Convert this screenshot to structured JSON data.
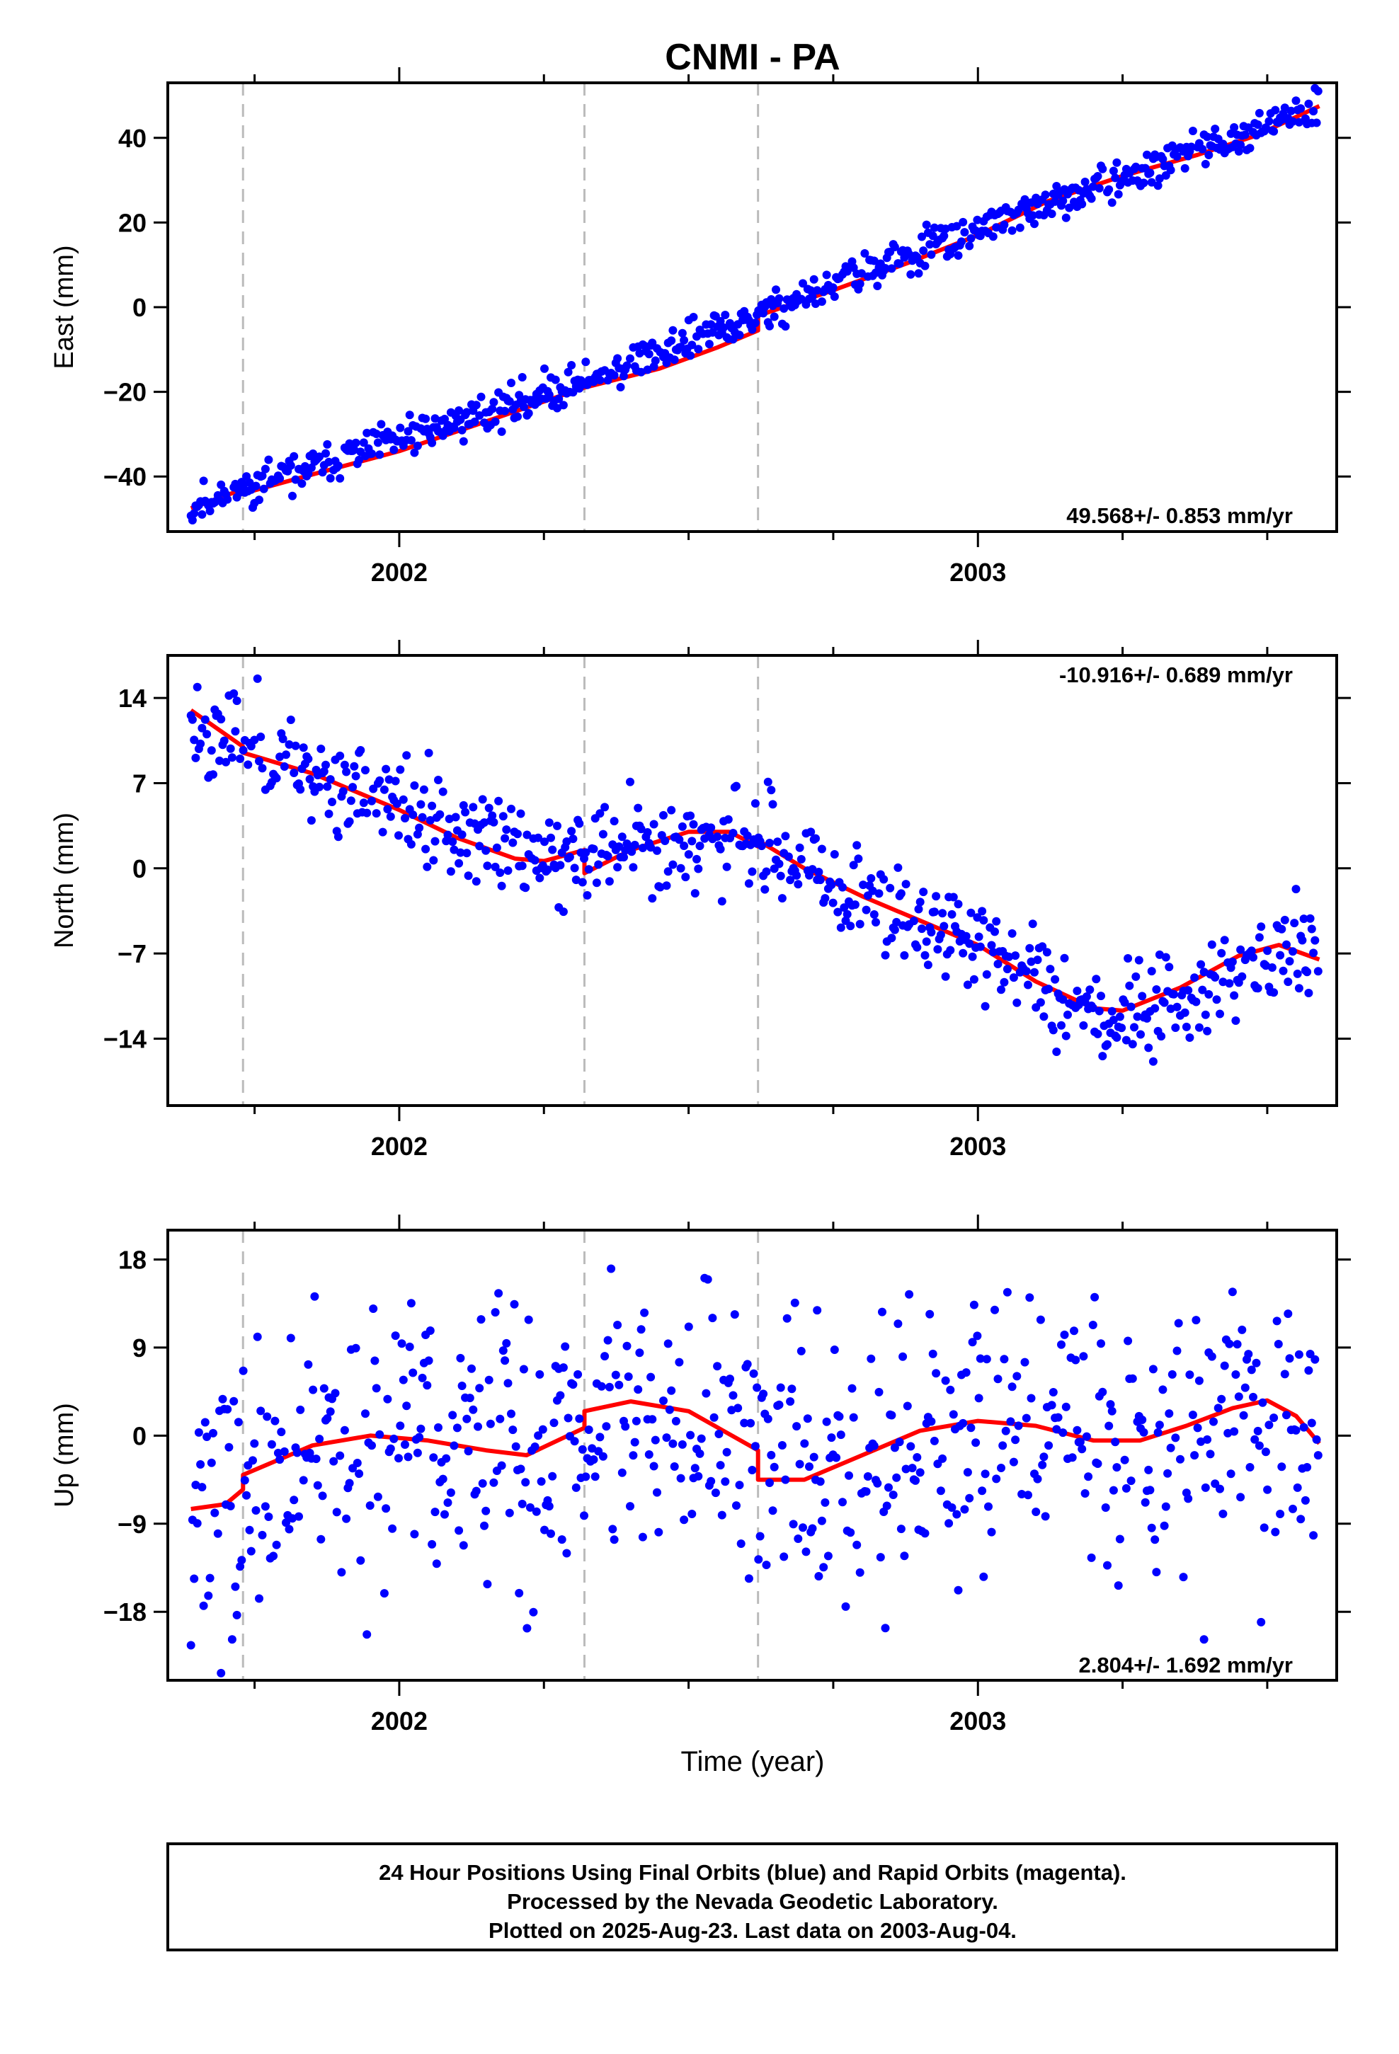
{
  "title": "CNMI - PA",
  "x_axis_label": "Time (year)",
  "footer": {
    "line1": "24 Hour Positions Using Final Orbits (blue) and Rapid Orbits (magenta).",
    "line2": "Processed by the Nevada Geodetic Laboratory.",
    "line3": "Plotted on 2025-Aug-23. Last data on 2003-Aug-04."
  },
  "colors": {
    "final_orbits": "#0000ff",
    "model_fit": "#ff0000",
    "event_lines": "#bbbbbb"
  },
  "chart_data": [
    {
      "type": "scatter",
      "ylabel": "East (mm)",
      "rate_label": "49.568+/- 0.853 mm/yr",
      "rate_position": "bottom-right",
      "xlim": [
        2001.6,
        2003.62
      ],
      "ylim": [
        -53,
        53
      ],
      "xticks": [
        2002,
        2003
      ],
      "xtick_labels": [
        "2002",
        "2003"
      ],
      "xminor": [
        2001.75,
        2002.25,
        2002.5,
        2002.75,
        2003.25,
        2003.5
      ],
      "yticks": [
        -40,
        -20,
        0,
        20,
        40
      ],
      "ytick_labels": [
        "−40",
        "−20",
        "0",
        "20",
        "40"
      ],
      "event_lines": [
        2001.73,
        2002.32,
        2002.62
      ],
      "fit": [
        [
          2001.64,
          -47.5
        ],
        [
          2001.73,
          -43.0
        ],
        [
          2001.73,
          -44.0
        ],
        [
          2001.85,
          -39.5
        ],
        [
          2002.0,
          -34.0
        ],
        [
          2002.15,
          -27.0
        ],
        [
          2002.32,
          -19.0
        ],
        [
          2002.45,
          -14.5
        ],
        [
          2002.55,
          -9.5
        ],
        [
          2002.62,
          -5.5
        ],
        [
          2002.62,
          -2.0
        ],
        [
          2002.75,
          4.0
        ],
        [
          2002.88,
          10.5
        ],
        [
          2003.0,
          17.0
        ],
        [
          2003.12,
          25.0
        ],
        [
          2003.25,
          31.0
        ],
        [
          2003.38,
          36.0
        ],
        [
          2003.48,
          40.5
        ],
        [
          2003.59,
          47.5
        ]
      ],
      "trend": [
        [
          2001.64,
          -47.0
        ],
        [
          2002.32,
          -17.5
        ],
        [
          2002.62,
          -2.0
        ],
        [
          2003.0,
          18.5
        ],
        [
          2003.3,
          32.5
        ],
        [
          2003.59,
          47.5
        ]
      ],
      "noise": 2.3,
      "seed": 11
    },
    {
      "type": "scatter",
      "ylabel": "North (mm)",
      "rate_label": "-10.916+/- 0.689 mm/yr",
      "rate_position": "top-right",
      "xlim": [
        2001.6,
        2003.62
      ],
      "ylim": [
        -19.5,
        17.5
      ],
      "xticks": [
        2002,
        2003
      ],
      "xtick_labels": [
        "2002",
        "2003"
      ],
      "xminor": [
        2001.75,
        2002.25,
        2002.5,
        2002.75,
        2003.25,
        2003.5
      ],
      "yticks": [
        -14,
        -7,
        0,
        7,
        14
      ],
      "ytick_labels": [
        "−14",
        "−7",
        "0",
        "7",
        "14"
      ],
      "event_lines": [
        2001.73,
        2002.32,
        2002.62
      ],
      "fit": [
        [
          2001.64,
          13.0
        ],
        [
          2001.73,
          10.0
        ],
        [
          2001.73,
          9.5
        ],
        [
          2001.85,
          7.8
        ],
        [
          2002.0,
          4.8
        ],
        [
          2002.1,
          2.5
        ],
        [
          2002.2,
          0.8
        ],
        [
          2002.25,
          0.6
        ],
        [
          2002.32,
          1.5
        ],
        [
          2002.32,
          -0.4
        ],
        [
          2002.4,
          1.5
        ],
        [
          2002.5,
          3.0
        ],
        [
          2002.57,
          3.0
        ],
        [
          2002.62,
          1.8
        ],
        [
          2002.62,
          2.3
        ],
        [
          2002.7,
          0.0
        ],
        [
          2002.8,
          -2.3
        ],
        [
          2002.9,
          -4.3
        ],
        [
          2003.0,
          -6.3
        ],
        [
          2003.1,
          -9.3
        ],
        [
          2003.2,
          -11.5
        ],
        [
          2003.25,
          -11.7
        ],
        [
          2003.35,
          -9.8
        ],
        [
          2003.45,
          -7.2
        ],
        [
          2003.52,
          -6.3
        ],
        [
          2003.59,
          -7.5
        ]
      ],
      "trend": [
        [
          2001.64,
          12.0
        ],
        [
          2001.8,
          9.0
        ],
        [
          2002.0,
          5.0
        ],
        [
          2002.2,
          1.0
        ],
        [
          2002.32,
          1.0
        ],
        [
          2002.45,
          2.5
        ],
        [
          2002.62,
          2.0
        ],
        [
          2002.8,
          -2.5
        ],
        [
          2003.0,
          -6.5
        ],
        [
          2003.22,
          -12.0
        ],
        [
          2003.4,
          -9.5
        ],
        [
          2003.59,
          -6.0
        ]
      ],
      "noise": 2.0,
      "seed": 23
    },
    {
      "type": "scatter",
      "ylabel": "Up (mm)",
      "rate_label": "2.804+/- 1.692 mm/yr",
      "rate_position": "bottom-right",
      "xlim": [
        2001.6,
        2003.62
      ],
      "ylim": [
        -25,
        21
      ],
      "xticks": [
        2002,
        2003
      ],
      "xtick_labels": [
        "2002",
        "2003"
      ],
      "xminor": [
        2001.75,
        2002.25,
        2002.5,
        2002.75,
        2003.25,
        2003.5
      ],
      "yticks": [
        -18,
        -9,
        0,
        9,
        18
      ],
      "ytick_labels": [
        "−18",
        "−9",
        "0",
        "9",
        "18"
      ],
      "event_lines": [
        2001.73,
        2002.32,
        2002.62
      ],
      "fit": [
        [
          2001.64,
          -7.5
        ],
        [
          2001.7,
          -7.0
        ],
        [
          2001.73,
          -5.5
        ],
        [
          2001.73,
          -4.0
        ],
        [
          2001.85,
          -1.0
        ],
        [
          2001.95,
          0.0
        ],
        [
          2002.05,
          -0.5
        ],
        [
          2002.15,
          -1.5
        ],
        [
          2002.22,
          -2.0
        ],
        [
          2002.32,
          0.8
        ],
        [
          2002.32,
          2.5
        ],
        [
          2002.4,
          3.5
        ],
        [
          2002.5,
          2.5
        ],
        [
          2002.62,
          -1.5
        ],
        [
          2002.62,
          -4.5
        ],
        [
          2002.7,
          -4.5
        ],
        [
          2002.8,
          -2.0
        ],
        [
          2002.9,
          0.5
        ],
        [
          2003.0,
          1.5
        ],
        [
          2003.1,
          1.0
        ],
        [
          2003.2,
          -0.5
        ],
        [
          2003.28,
          -0.5
        ],
        [
          2003.36,
          1.0
        ],
        [
          2003.44,
          2.8
        ],
        [
          2003.5,
          3.6
        ],
        [
          2003.55,
          2.0
        ],
        [
          2003.59,
          -0.8
        ]
      ],
      "trend": [
        [
          2001.64,
          -7.0
        ],
        [
          2001.73,
          -4.5
        ],
        [
          2001.95,
          0.0
        ],
        [
          2002.2,
          -2.0
        ],
        [
          2002.32,
          1.5
        ],
        [
          2002.45,
          3.5
        ],
        [
          2002.62,
          -2.5
        ],
        [
          2002.7,
          -4.5
        ],
        [
          2003.0,
          1.5
        ],
        [
          2003.25,
          -0.5
        ],
        [
          2003.5,
          3.0
        ],
        [
          2003.59,
          0.0
        ]
      ],
      "noise": 7.5,
      "seed": 37
    }
  ]
}
